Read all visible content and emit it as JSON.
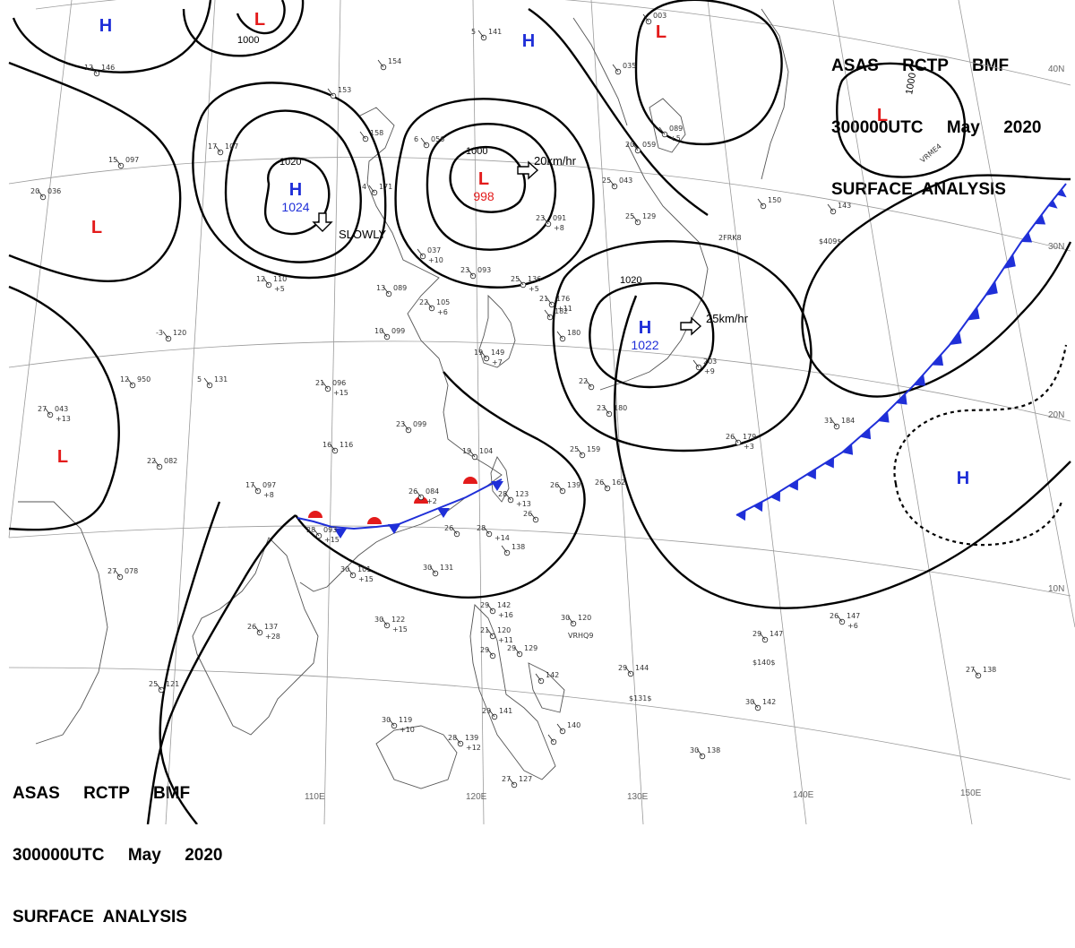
{
  "header": {
    "lines": [
      "ASAS     RCTP     BMF",
      "300000UTC     May     2020",
      "SURFACE  ANALYSIS"
    ]
  },
  "colors": {
    "high": "#1f2fd8",
    "low": "#e31b1b",
    "front_cold": "#1f2fd8",
    "front_warm": "#e31b1b",
    "isobar": "#000000"
  },
  "grid_labels": {
    "longitudes": [
      "110E",
      "120E",
      "130E",
      "140E",
      "150E"
    ],
    "latitudes": [
      "40N",
      "30N",
      "20N",
      "10N"
    ]
  },
  "pressure_centers": [
    {
      "type": "H",
      "value": "1024"
    },
    {
      "type": "L",
      "value": "998"
    },
    {
      "type": "H",
      "value": "1022"
    },
    {
      "type": "H",
      "value": ""
    },
    {
      "type": "H",
      "value": ""
    },
    {
      "type": "H",
      "value": ""
    },
    {
      "type": "L",
      "value": ""
    },
    {
      "type": "L",
      "value": ""
    },
    {
      "type": "L",
      "value": ""
    },
    {
      "type": "L",
      "value": ""
    },
    {
      "type": "L",
      "value": ""
    }
  ],
  "isobar_labels": [
    "1020",
    "1000",
    "1020",
    "1000",
    "1000"
  ],
  "motion_labels": [
    "SLOWLY",
    "20km/hr",
    "25km/hr"
  ],
  "stations": [
    {
      "temp": "12",
      "pressure": "146"
    },
    {
      "temp": "15",
      "pressure": "097"
    },
    {
      "temp": "20",
      "pressure": "036"
    },
    {
      "temp": "",
      "pressure": "154"
    },
    {
      "temp": "",
      "pressure": "153"
    },
    {
      "temp": "17",
      "pressure": "107"
    },
    {
      "temp": "",
      "pressure": "158"
    },
    {
      "temp": "4",
      "pressure": "171"
    },
    {
      "temp": "6",
      "pressure": "056"
    },
    {
      "temp": "5",
      "pressure": "141"
    },
    {
      "temp": "",
      "pressure": "035"
    },
    {
      "temp": "",
      "pressure": "003"
    },
    {
      "temp": "20",
      "pressure": "059"
    },
    {
      "temp": "25",
      "pressure": "043"
    },
    {
      "temp": "",
      "pressure": "089"
    },
    {
      "temp": "23",
      "pressure": "091"
    },
    {
      "temp": "25",
      "pressure": "129"
    },
    {
      "temp": "",
      "pressure": "150"
    },
    {
      "temp": "",
      "pressure": "143"
    },
    {
      "temp": "",
      "pressure": "037"
    },
    {
      "temp": "23",
      "pressure": "093"
    },
    {
      "temp": "13",
      "pressure": "089"
    },
    {
      "temp": "22",
      "pressure": "105"
    },
    {
      "temp": "25",
      "pressure": "136"
    },
    {
      "temp": "12",
      "pressure": "110"
    },
    {
      "temp": "21",
      "pressure": "176"
    },
    {
      "temp": "",
      "pressure": "182"
    },
    {
      "temp": "",
      "pressure": "180"
    },
    {
      "temp": "19",
      "pressure": "149"
    },
    {
      "temp": "10",
      "pressure": "099"
    },
    {
      "temp": "-3",
      "pressure": "120"
    },
    {
      "temp": "12",
      "pressure": "950"
    },
    {
      "temp": "5",
      "pressure": "131"
    },
    {
      "temp": "21",
      "pressure": "096"
    },
    {
      "temp": "27",
      "pressure": "043"
    },
    {
      "temp": "22",
      "pressure": "082"
    },
    {
      "temp": "23",
      "pressure": "099"
    },
    {
      "temp": "16",
      "pressure": "116"
    },
    {
      "temp": "19",
      "pressure": "104"
    },
    {
      "temp": "17",
      "pressure": "097"
    },
    {
      "temp": "26",
      "pressure": "084"
    },
    {
      "temp": "22",
      "pressure": ""
    },
    {
      "temp": "23",
      "pressure": "180"
    },
    {
      "temp": "25",
      "pressure": "159"
    },
    {
      "temp": "",
      "pressure": "203"
    },
    {
      "temp": "26",
      "pressure": "179"
    },
    {
      "temp": "31",
      "pressure": "184"
    },
    {
      "temp": "28",
      "pressure": "123"
    },
    {
      "temp": "26",
      "pressure": "139"
    },
    {
      "temp": "26",
      "pressure": "162"
    },
    {
      "temp": "28",
      "pressure": "093"
    },
    {
      "temp": "26",
      "pressure": ""
    },
    {
      "temp": "28",
      "pressure": ""
    },
    {
      "temp": "",
      "pressure": "138"
    },
    {
      "temp": "26",
      "pressure": ""
    },
    {
      "temp": "30",
      "pressure": "101"
    },
    {
      "temp": "30",
      "pressure": "131"
    },
    {
      "temp": "27",
      "pressure": "078"
    },
    {
      "temp": "26",
      "pressure": "137"
    },
    {
      "temp": "30",
      "pressure": "122"
    },
    {
      "temp": "29",
      "pressure": "142"
    },
    {
      "temp": "21",
      "pressure": "120"
    },
    {
      "temp": "29",
      "pressure": ""
    },
    {
      "temp": "29",
      "pressure": "129"
    },
    {
      "temp": "30",
      "pressure": "120"
    },
    {
      "temp": "",
      "pressure": "142"
    },
    {
      "temp": "29",
      "pressure": "144"
    },
    {
      "temp": "29",
      "pressure": "147"
    },
    {
      "temp": "26",
      "pressure": "147"
    },
    {
      "temp": "25",
      "pressure": "121"
    },
    {
      "temp": "30",
      "pressure": "119"
    },
    {
      "temp": "28",
      "pressure": "139"
    },
    {
      "temp": "29",
      "pressure": "141"
    },
    {
      "temp": "",
      "pressure": "140"
    },
    {
      "temp": "30",
      "pressure": "142"
    },
    {
      "temp": "27",
      "pressure": "138"
    },
    {
      "temp": "30",
      "pressure": "138"
    },
    {
      "temp": "27",
      "pressure": "127"
    },
    {
      "temp": "",
      "pressure": ""
    }
  ],
  "station_tendencies": [
    "+10",
    "+6",
    "+5",
    "+11",
    "+5",
    "+8",
    "+7",
    "+15",
    "+13",
    "+8",
    "+2",
    "+13",
    "+15",
    "+14",
    "+15",
    "+28",
    "+15",
    "+16",
    "+11",
    "+5",
    "+10",
    "+12",
    "+6",
    "+9",
    "+3"
  ],
  "station_ids": [
    "2FRK8",
    "VRHQ9",
    "$409$",
    "$140$",
    "$131$",
    "VRME4"
  ]
}
